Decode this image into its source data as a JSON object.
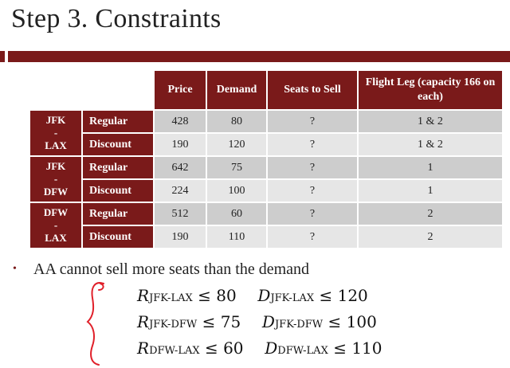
{
  "title": "Step 3. Constraints",
  "table": {
    "headers": [
      "Price",
      "Demand",
      "Seats to Sell",
      "Flight Leg (capacity 166 on each)"
    ],
    "groups": [
      {
        "route": [
          "JFK",
          "-",
          "LAX"
        ],
        "rows": [
          {
            "fare": "Regular",
            "price": "428",
            "demand": "80",
            "seats": "?",
            "leg": "1 & 2"
          },
          {
            "fare": "Discount",
            "price": "190",
            "demand": "120",
            "seats": "?",
            "leg": "1 & 2"
          }
        ]
      },
      {
        "route": [
          "JFK",
          "-",
          "DFW"
        ],
        "rows": [
          {
            "fare": "Regular",
            "price": "642",
            "demand": "75",
            "seats": "?",
            "leg": "1"
          },
          {
            "fare": "Discount",
            "price": "224",
            "demand": "100",
            "seats": "?",
            "leg": "1"
          }
        ]
      },
      {
        "route": [
          "DFW",
          "-",
          "LAX"
        ],
        "rows": [
          {
            "fare": "Regular",
            "price": "512",
            "demand": "60",
            "seats": "?",
            "leg": "2"
          },
          {
            "fare": "Discount",
            "price": "190",
            "demand": "110",
            "seats": "?",
            "leg": "2"
          }
        ]
      }
    ]
  },
  "bullet": "AA cannot sell more seats than the demand",
  "constraints": [
    {
      "r_sub": "JFK-LAX",
      "r_val": "80",
      "d_sub": "JFK-LAX",
      "d_val": "120"
    },
    {
      "r_sub": "JFK-DFW",
      "r_val": "75",
      "d_sub": "JFK-DFW",
      "d_val": "100"
    },
    {
      "r_sub": "DFW-LAX",
      "r_val": "60",
      "d_sub": "DFW-LAX",
      "d_val": "110"
    }
  ],
  "symbols": {
    "r": "R",
    "d": "D",
    "leq": "≤"
  },
  "colors": {
    "accent": "#7a1a1a",
    "brace": "#e0202a"
  }
}
